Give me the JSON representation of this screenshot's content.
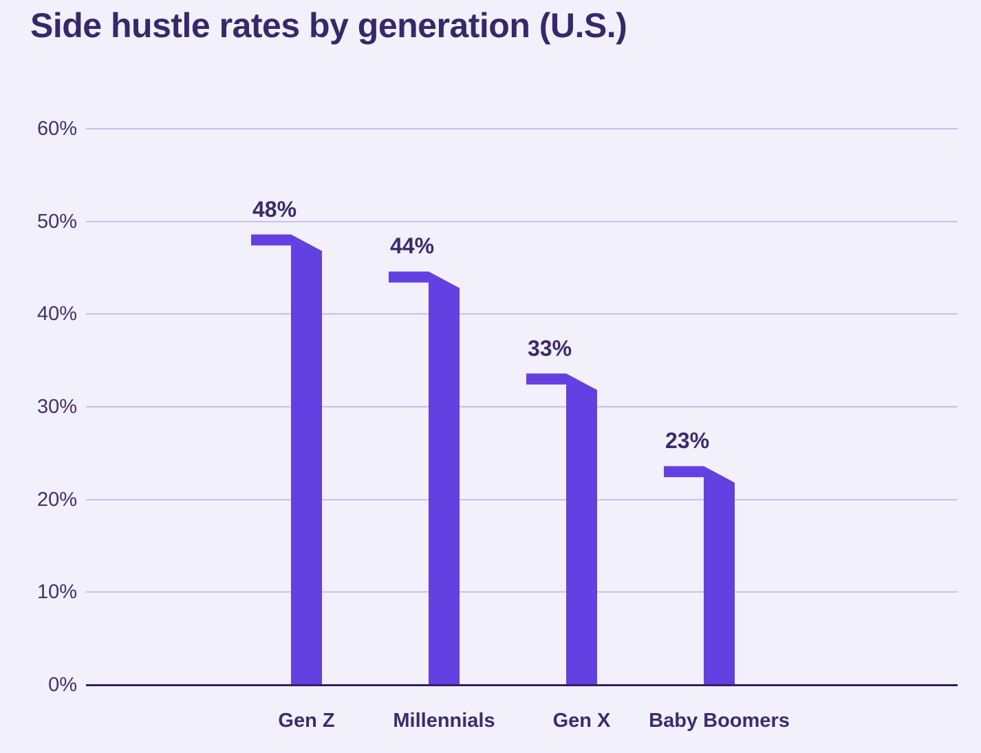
{
  "page": {
    "background": "#F2F1FB"
  },
  "chart_data": {
    "type": "bar",
    "title": "Side hustle rates by generation (U.S.)",
    "categories": [
      "Gen Z",
      "Millennials",
      "Gen X",
      "Baby Boomers"
    ],
    "values": [
      48,
      44,
      33,
      23
    ],
    "value_labels": [
      "48%",
      "44%",
      "33%",
      "23%"
    ],
    "xlabel": "",
    "ylabel": "",
    "ylim": [
      0,
      60
    ],
    "y_tick_values": [
      0,
      10,
      20,
      30,
      40,
      50,
      60
    ],
    "y_tick_labels": [
      "0%",
      "10%",
      "20%",
      "30%",
      "40%",
      "50%",
      "60%"
    ],
    "grid": "horizontal gridlines on, darker solid baseline at 0%",
    "legend": "none",
    "bar_shape": "vertical column with flag-like left cap at top and diagonal shoulder down to column right edge",
    "colors": {
      "bar": "#6340E2",
      "background": "#F2F1FB",
      "gridline": "#C8C1EF",
      "axis_line": "#32205F",
      "title_text": "#35296B",
      "tick_text": "#3F3173",
      "value_text": "#392B70",
      "category_text": "#3B2C72"
    }
  }
}
